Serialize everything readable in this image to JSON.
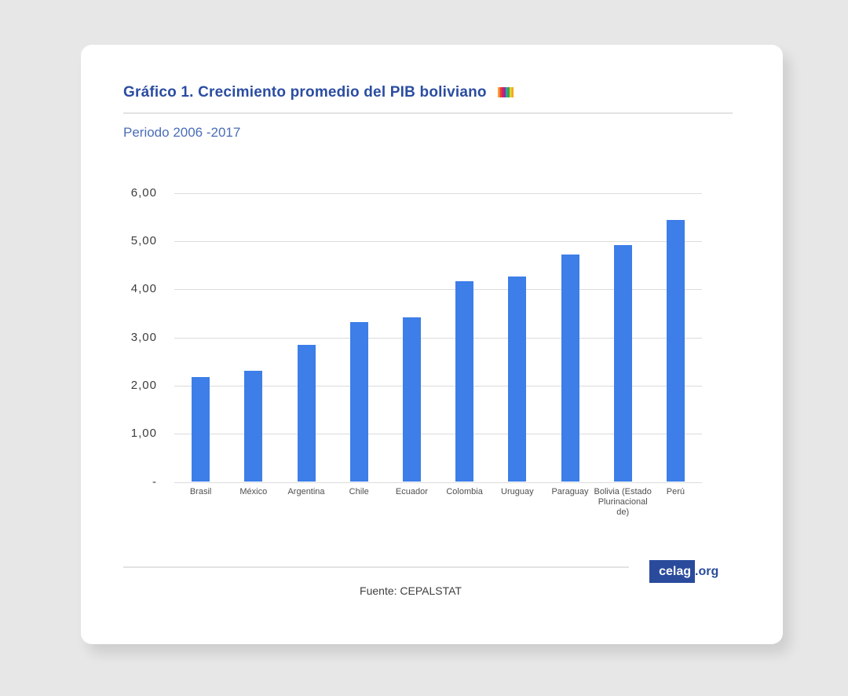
{
  "card": {
    "title": "Gráfico 1. Crecimiento promedio del PIB boliviano",
    "subtitle": "Periodo 2006 -2017",
    "source": "Fuente: CEPALSTAT",
    "logo": {
      "brand": "celag",
      "suffix": ".org"
    }
  },
  "colors": {
    "title_blue": "#2b4da1",
    "subtitle_blue": "#4a6db8",
    "bar_blue": "#3d7ee8",
    "logo_blue": "#2a4b9c",
    "gridline_gray": "#dcdcdc",
    "title_icon_stripes": [
      "#f9a13a",
      "#ea4335",
      "#d6216b",
      "#8e2f9e",
      "#2ba8a0",
      "#43a047",
      "#e3d331",
      "#f4a71f"
    ]
  },
  "chart_data": {
    "type": "bar",
    "title": "Gráfico 1. Crecimiento promedio del PIB boliviano",
    "subtitle": "Periodo 2006 -2017",
    "categories": [
      "Brasil",
      "México",
      "Argentina",
      "Chile",
      "Ecuador",
      "Colombia",
      "Uruguay",
      "Paraguay",
      "Bolivia (Estado Plurinacional de)",
      "Perú"
    ],
    "values": [
      2.17,
      2.31,
      2.84,
      3.32,
      3.41,
      4.16,
      4.27,
      4.72,
      4.92,
      5.43
    ],
    "xlabel": "",
    "ylabel": "",
    "ylim": [
      0,
      6
    ],
    "ytick_labels": [
      "-",
      "1,00",
      "2,00",
      "3,00",
      "4,00",
      "5,00",
      "6,00"
    ],
    "grid": true,
    "legend": "none",
    "decimal_separator": ",",
    "source": "Fuente: CEPALSTAT"
  }
}
